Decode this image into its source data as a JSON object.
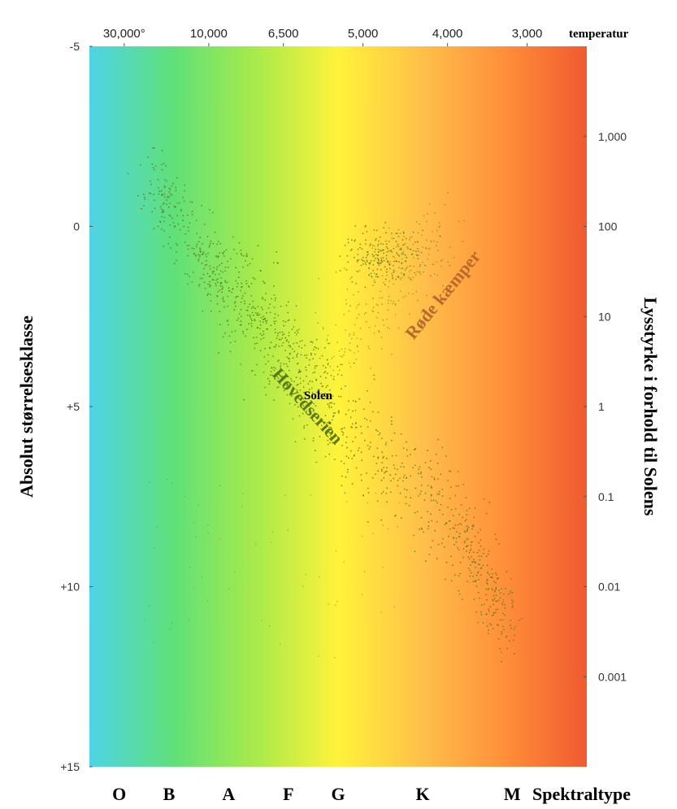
{
  "chart_data": {
    "type": "scatter",
    "temperature_label": "temperatur",
    "left_axis_label": "Absolut størrelsesklasse",
    "right_axis_label": "Lysstyrke i forhold til Solens",
    "spectral_label": "Spektraltype",
    "y_range": [
      -5,
      15
    ],
    "y_inverted": true,
    "temperature_ticks": [
      {
        "label": "30,000°",
        "pos": 0.07
      },
      {
        "label": "10,000",
        "pos": 0.24
      },
      {
        "label": "6,500",
        "pos": 0.39
      },
      {
        "label": "5,000",
        "pos": 0.55
      },
      {
        "label": "4,000",
        "pos": 0.72
      },
      {
        "label": "3,000",
        "pos": 0.88
      }
    ],
    "magnitude_ticks": [
      {
        "label": "-5",
        "value": -5
      },
      {
        "label": "0",
        "value": 0
      },
      {
        "label": "+5",
        "value": 5
      },
      {
        "label": "+10",
        "value": 10
      },
      {
        "label": "+15",
        "value": 15
      }
    ],
    "luminosity_ticks": [
      {
        "label": "1,000",
        "value": -2.5
      },
      {
        "label": "100",
        "value": 0
      },
      {
        "label": "10",
        "value": 2.5
      },
      {
        "label": "1",
        "value": 5
      },
      {
        "label": "0.1",
        "value": 7.5
      },
      {
        "label": "0.01",
        "value": 10
      },
      {
        "label": "0.001",
        "value": 12.5
      }
    ],
    "spectral_types": [
      {
        "label": "O",
        "pos": 0.06
      },
      {
        "label": "B",
        "pos": 0.16
      },
      {
        "label": "A",
        "pos": 0.28
      },
      {
        "label": "F",
        "pos": 0.4
      },
      {
        "label": "G",
        "pos": 0.5
      },
      {
        "label": "K",
        "pos": 0.67
      },
      {
        "label": "M",
        "pos": 0.85
      }
    ],
    "annotations": [
      {
        "text": "Solen",
        "pos": 0.46,
        "value": 4.8
      },
      {
        "text": "Hovedserien",
        "pos": 0.43,
        "value": 5.1
      },
      {
        "text": "Røde kæmper",
        "pos": 0.72,
        "value": 2.0
      }
    ],
    "background_gradient": [
      "#4fd3e6",
      "#5fe07a",
      "#a8ea4a",
      "#fff33a",
      "#ffc04a",
      "#ff8f3a",
      "#f05a30"
    ],
    "star_color": "#5a7a18",
    "main_sequence": [
      [
        0.12,
        -1.6
      ],
      [
        0.16,
        -0.4
      ],
      [
        0.22,
        0.8
      ],
      [
        0.28,
        1.7
      ],
      [
        0.34,
        2.5
      ],
      [
        0.4,
        3.5
      ],
      [
        0.46,
        4.6
      ],
      [
        0.52,
        5.6
      ],
      [
        0.6,
        6.6
      ],
      [
        0.68,
        7.4
      ],
      [
        0.74,
        8.2
      ],
      [
        0.78,
        9.3
      ],
      [
        0.82,
        10.5
      ],
      [
        0.85,
        11.2
      ]
    ],
    "giant_clump": {
      "pos": 0.59,
      "value": 0.8
    },
    "giant_branch": [
      [
        0.5,
        3.8
      ],
      [
        0.56,
        2.3
      ],
      [
        0.62,
        1.2
      ],
      [
        0.7,
        0.2
      ]
    ]
  }
}
